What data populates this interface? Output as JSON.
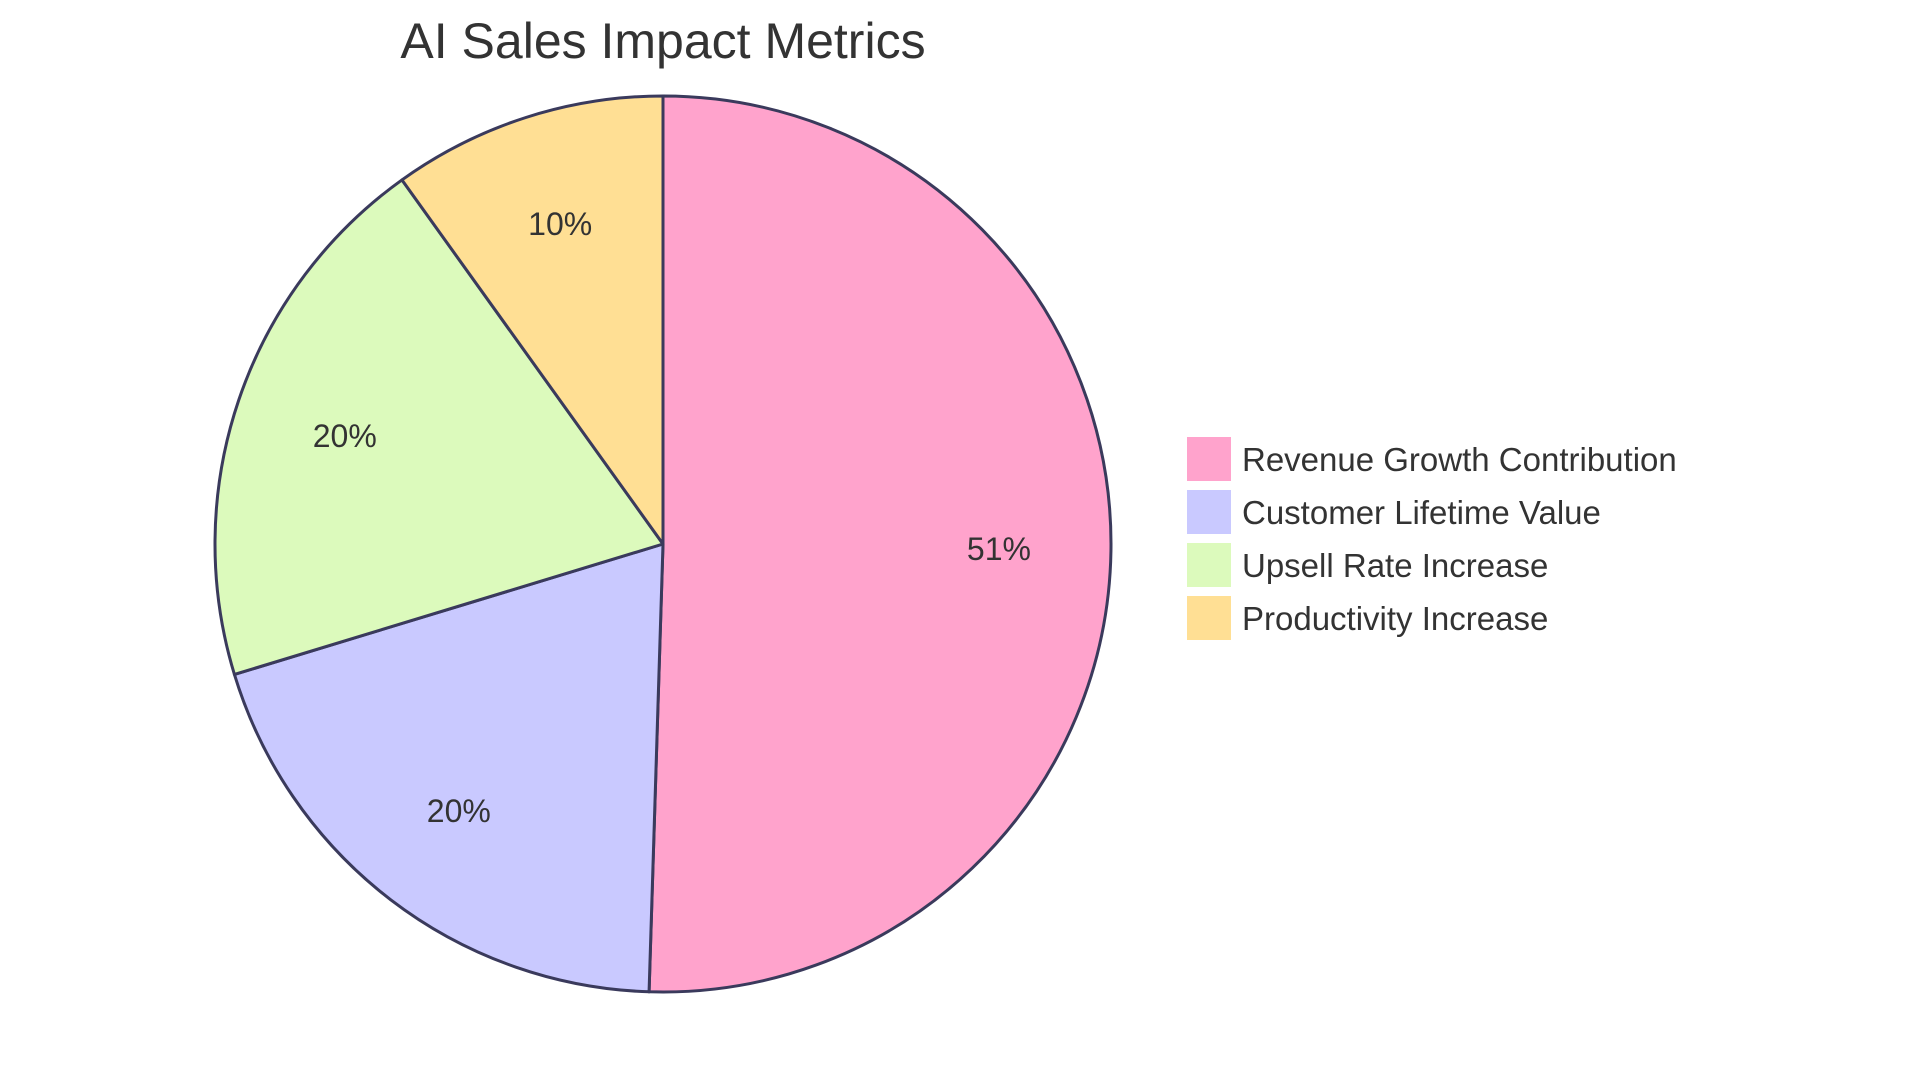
{
  "chart_data": {
    "type": "pie",
    "title": "AI Sales Impact Metrics",
    "legend_position": "right",
    "slices": [
      {
        "label": "Revenue Growth Contribution",
        "value": 51,
        "display": "51%",
        "color": "#FFA3CC"
      },
      {
        "label": "Customer Lifetime Value",
        "value": 20,
        "display": "20%",
        "color": "#C9C9FF"
      },
      {
        "label": "Upsell Rate Increase",
        "value": 20,
        "display": "20%",
        "color": "#DCFABC"
      },
      {
        "label": "Productivity Increase",
        "value": 10,
        "display": "10%",
        "color": "#FFDF94"
      }
    ],
    "stroke_color": "#3A3A5C"
  }
}
